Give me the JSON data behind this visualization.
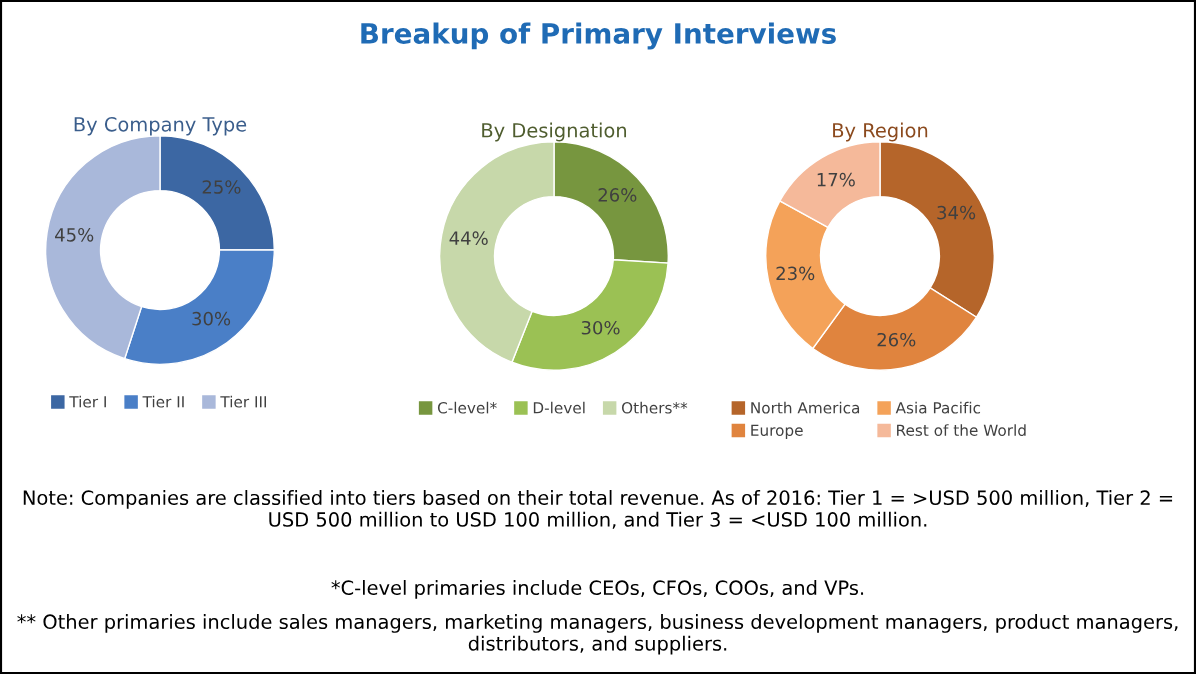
{
  "chart_data": [
    {
      "type": "other",
      "title": "Breakup of Primary Interviews",
      "annotations": [
        "Note: Companies are classified into tiers based on their total revenue. As of 2016: Tier 1 = >USD 500 million, Tier 2 = USD 500 million to USD 100 million, and Tier 3 = <USD 100 million.",
        "*C-level primaries include CEOs, CFOs, COOs, and VPs.",
        "** Other primaries include sales managers, marketing managers, business development managers, product managers, distributors, and suppliers."
      ]
    },
    {
      "type": "donut",
      "title": "By Company Type",
      "categories": [
        "Tier I",
        "Tier II",
        "Tier III"
      ],
      "values": [
        25,
        30,
        45
      ],
      "value_labels": [
        "25%",
        "30%",
        "45%"
      ],
      "colors": [
        "#3c67a3",
        "#4a7fc7",
        "#a9b8da"
      ],
      "legend": "bottom"
    },
    {
      "type": "donut",
      "title": "By Designation",
      "categories": [
        "C-level*",
        "D-level",
        "Others**"
      ],
      "values": [
        26,
        30,
        44
      ],
      "value_labels": [
        "26%",
        "30%",
        "44%"
      ],
      "colors": [
        "#77963f",
        "#9bc154",
        "#c7d8aa"
      ],
      "legend": "bottom"
    },
    {
      "type": "donut",
      "title": "By Region",
      "categories": [
        "North America",
        "Europe",
        "Asia Pacific",
        "Rest of the World"
      ],
      "values": [
        34,
        26,
        23,
        17
      ],
      "value_labels": [
        "34%",
        "26%",
        "23%",
        "17%"
      ],
      "colors": [
        "#b5652a",
        "#e0843e",
        "#f4a259",
        "#f5b99a"
      ],
      "legend": "bottom"
    }
  ]
}
